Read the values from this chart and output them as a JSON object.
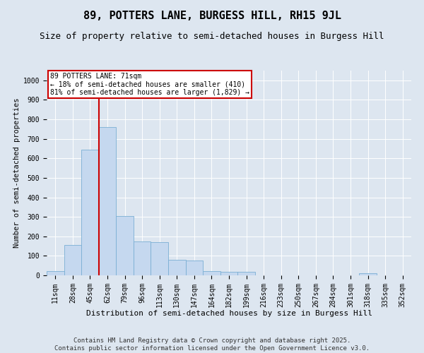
{
  "title": "89, POTTERS LANE, BURGESS HILL, RH15 9JL",
  "subtitle": "Size of property relative to semi-detached houses in Burgess Hill",
  "xlabel": "Distribution of semi-detached houses by size in Burgess Hill",
  "ylabel": "Number of semi-detached properties",
  "categories": [
    "11sqm",
    "28sqm",
    "45sqm",
    "62sqm",
    "79sqm",
    "96sqm",
    "113sqm",
    "130sqm",
    "147sqm",
    "164sqm",
    "182sqm",
    "199sqm",
    "216sqm",
    "233sqm",
    "250sqm",
    "267sqm",
    "284sqm",
    "301sqm",
    "318sqm",
    "335sqm",
    "352sqm"
  ],
  "values": [
    20,
    155,
    645,
    760,
    305,
    175,
    170,
    80,
    75,
    20,
    18,
    18,
    0,
    0,
    0,
    0,
    0,
    0,
    10,
    0,
    0
  ],
  "bar_color": "#c5d8ef",
  "bar_edge_color": "#7aafd4",
  "annotation_text": "89 POTTERS LANE: 71sqm\n← 18% of semi-detached houses are smaller (410)\n81% of semi-detached houses are larger (1,829) →",
  "annotation_box_color": "#ffffff",
  "annotation_box_edge_color": "#cc0000",
  "line_color": "#cc0000",
  "ylim": [
    0,
    1050
  ],
  "yticks": [
    0,
    100,
    200,
    300,
    400,
    500,
    600,
    700,
    800,
    900,
    1000
  ],
  "bg_color": "#dde6f0",
  "plot_bg_color": "#dde6f0",
  "grid_color": "#ffffff",
  "footnote": "Contains HM Land Registry data © Crown copyright and database right 2025.\nContains public sector information licensed under the Open Government Licence v3.0.",
  "title_fontsize": 11,
  "subtitle_fontsize": 9,
  "xlabel_fontsize": 8,
  "ylabel_fontsize": 7.5,
  "footnote_fontsize": 6.5,
  "annot_fontsize": 7,
  "tick_fontsize": 7
}
